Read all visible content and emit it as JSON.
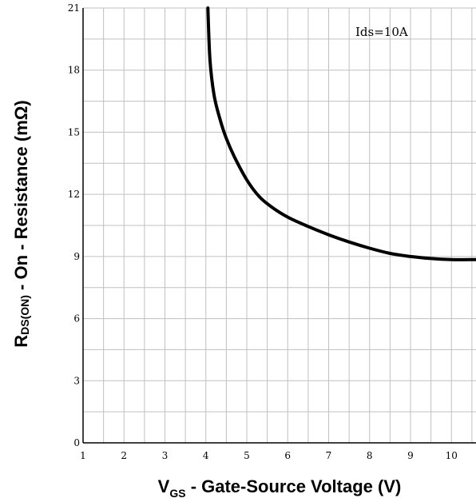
{
  "chart_data": {
    "type": "line",
    "xlabel": {
      "main": "V",
      "sub": "GS",
      "rest": " - Gate-Source Voltage (V)"
    },
    "ylabel": {
      "main": "R",
      "sub": "DS(ON)",
      "rest": " - On - Resistance (mΩ)"
    },
    "annotation": "Ids=10A",
    "xlim": [
      1,
      10.6
    ],
    "ylim": [
      0,
      21
    ],
    "xticks": [
      "1",
      "2",
      "3",
      "4",
      "5",
      "6",
      "7",
      "8",
      "9",
      "10"
    ],
    "yticks": [
      "0",
      "3",
      "6",
      "9",
      "12",
      "15",
      "18",
      "21"
    ],
    "grid": true,
    "series": [
      {
        "x": [
          4.05,
          4.1,
          4.2,
          4.35,
          4.5,
          4.7,
          5.0,
          5.3,
          5.6,
          6.0,
          6.5,
          7.0,
          7.5,
          8.0,
          8.5,
          9.0,
          9.5,
          10.0,
          10.6
        ],
        "y": [
          21.0,
          18.5,
          16.8,
          15.6,
          14.7,
          13.8,
          12.7,
          11.9,
          11.4,
          10.9,
          10.45,
          10.05,
          9.7,
          9.4,
          9.15,
          9.0,
          8.9,
          8.85,
          8.85
        ],
        "color": "#000000"
      }
    ]
  }
}
